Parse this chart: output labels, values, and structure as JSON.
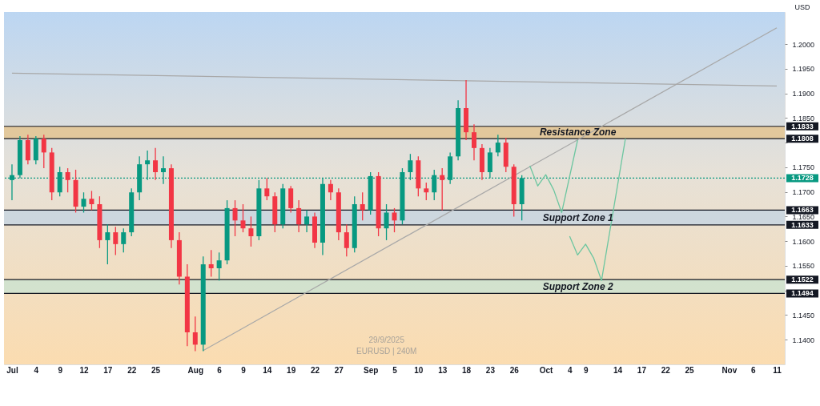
{
  "chart_data": {
    "type": "candlestick",
    "ylabel": "USD",
    "categories": [
      "Jul",
      null,
      null,
      "4",
      null,
      null,
      "9",
      null,
      null,
      "12",
      null,
      null,
      "17",
      null,
      null,
      "22",
      null,
      null,
      "25",
      null,
      null,
      null,
      null,
      "Aug",
      null,
      null,
      "6",
      null,
      null,
      "9",
      null,
      null,
      "14",
      null,
      null,
      "19",
      null,
      null,
      "22",
      null,
      null,
      "27",
      null,
      null,
      null,
      "Sep",
      null,
      null,
      "5",
      null,
      null,
      "10",
      null,
      null,
      "13",
      null,
      null,
      "18",
      null,
      null,
      "23",
      null,
      null,
      "26",
      null,
      null,
      null,
      "Oct",
      null,
      null,
      "4",
      null,
      "9",
      null,
      null,
      null,
      "14",
      null,
      null,
      "17",
      null,
      null,
      "22",
      null,
      null,
      "25",
      null,
      null,
      null,
      null,
      "Nov",
      null,
      null,
      "6",
      null,
      null,
      "11"
    ],
    "ohlc": [
      [
        1.1724,
        1.1756,
        1.1683,
        1.1734
      ],
      [
        1.1734,
        1.1813,
        1.1728,
        1.1805
      ],
      [
        1.1805,
        1.1816,
        1.1756,
        1.1764
      ],
      [
        1.1764,
        1.1813,
        1.1756,
        1.1808
      ],
      [
        1.1808,
        1.1816,
        1.1748,
        1.178
      ],
      [
        1.178,
        1.1789,
        1.1683,
        1.1699
      ],
      [
        1.1699,
        1.1751,
        1.1691,
        1.174
      ],
      [
        1.174,
        1.1748,
        1.1699,
        1.1724
      ],
      [
        1.1724,
        1.1745,
        1.1658,
        1.167
      ],
      [
        1.167,
        1.1699,
        1.1658,
        1.1686
      ],
      [
        1.1686,
        1.1702,
        1.1663,
        1.1675
      ],
      [
        1.1675,
        1.1691,
        1.1586,
        1.1602
      ],
      [
        1.1602,
        1.1634,
        1.1553,
        1.1618
      ],
      [
        1.1618,
        1.1629,
        1.1572,
        1.1594
      ],
      [
        1.1594,
        1.1626,
        1.1577,
        1.1618
      ],
      [
        1.1618,
        1.1707,
        1.161,
        1.1699
      ],
      [
        1.1699,
        1.1772,
        1.1683,
        1.1756
      ],
      [
        1.1756,
        1.1784,
        1.1724,
        1.1764
      ],
      [
        1.1764,
        1.1789,
        1.1724,
        1.174
      ],
      [
        1.174,
        1.1772,
        1.1716,
        1.1748
      ],
      [
        1.1748,
        1.1756,
        1.1586,
        1.1602
      ],
      [
        1.1602,
        1.1618,
        1.1512,
        1.1528
      ],
      [
        1.1528,
        1.1553,
        1.1387,
        1.1415
      ],
      [
        1.1415,
        1.1447,
        1.1377,
        1.139
      ],
      [
        1.139,
        1.1569,
        1.1377,
        1.1553
      ],
      [
        1.1553,
        1.1582,
        1.1528,
        1.1545
      ],
      [
        1.1545,
        1.1577,
        1.152,
        1.1561
      ],
      [
        1.1561,
        1.1683,
        1.1553,
        1.1667
      ],
      [
        1.1667,
        1.1683,
        1.161,
        1.1642
      ],
      [
        1.1642,
        1.1675,
        1.1618,
        1.1626
      ],
      [
        1.1626,
        1.165,
        1.1589,
        1.161
      ],
      [
        1.161,
        1.1724,
        1.1602,
        1.1707
      ],
      [
        1.1707,
        1.1728,
        1.1683,
        1.1691
      ],
      [
        1.1691,
        1.1699,
        1.1618,
        1.1634
      ],
      [
        1.1634,
        1.1716,
        1.1626,
        1.1707
      ],
      [
        1.1707,
        1.1712,
        1.1658,
        1.1667
      ],
      [
        1.1667,
        1.1683,
        1.1618,
        1.1634
      ],
      [
        1.1634,
        1.1663,
        1.1618,
        1.165
      ],
      [
        1.165,
        1.1658,
        1.1586,
        1.1597
      ],
      [
        1.1597,
        1.1728,
        1.1572,
        1.1716
      ],
      [
        1.1716,
        1.1724,
        1.1683,
        1.1699
      ],
      [
        1.1699,
        1.1707,
        1.1602,
        1.1618
      ],
      [
        1.1618,
        1.1634,
        1.1569,
        1.1586
      ],
      [
        1.1586,
        1.1691,
        1.1577,
        1.1675
      ],
      [
        1.1675,
        1.1699,
        1.1642,
        1.1663
      ],
      [
        1.1663,
        1.174,
        1.1654,
        1.1732
      ],
      [
        1.1732,
        1.174,
        1.161,
        1.1626
      ],
      [
        1.1626,
        1.1675,
        1.1602,
        1.1658
      ],
      [
        1.1658,
        1.1667,
        1.1618,
        1.1642
      ],
      [
        1.1642,
        1.1748,
        1.1634,
        1.174
      ],
      [
        1.174,
        1.1777,
        1.1724,
        1.1764
      ],
      [
        1.1764,
        1.1772,
        1.1691,
        1.1707
      ],
      [
        1.1707,
        1.1719,
        1.1683,
        1.1699
      ],
      [
        1.1699,
        1.1745,
        1.1683,
        1.1734
      ],
      [
        1.1734,
        1.1748,
        1.1663,
        1.1724
      ],
      [
        1.1724,
        1.178,
        1.1716,
        1.1772
      ],
      [
        1.1772,
        1.1886,
        1.1764,
        1.187
      ],
      [
        1.187,
        1.1927,
        1.1805,
        1.1821
      ],
      [
        1.1821,
        1.1837,
        1.1764,
        1.1789
      ],
      [
        1.1789,
        1.1797,
        1.1724,
        1.174
      ],
      [
        1.174,
        1.1789,
        1.1728,
        1.178
      ],
      [
        1.178,
        1.1816,
        1.1772,
        1.18
      ],
      [
        1.18,
        1.181,
        1.174,
        1.1751
      ],
      [
        1.1751,
        1.1756,
        1.165,
        1.1675
      ],
      [
        1.1675,
        1.1734,
        1.1642,
        1.1728
      ],
      null,
      null,
      null,
      null,
      null,
      null,
      null,
      null,
      null,
      null,
      null,
      null,
      null,
      null,
      null,
      null,
      null,
      null,
      null,
      null,
      null,
      null,
      null,
      null,
      null,
      null,
      null,
      null,
      null,
      null,
      null,
      null
    ],
    "series": [
      {
        "type": "line",
        "color": "#a8a8a8",
        "values": [
          null,
          null,
          null,
          null,
          null,
          null,
          null,
          null,
          null,
          null,
          null,
          null,
          null,
          null,
          null,
          null,
          null,
          null,
          null,
          null,
          null,
          null,
          null,
          null,
          1.1378,
          null,
          null,
          null,
          null,
          null,
          null,
          null,
          null,
          null,
          null,
          null,
          null,
          null,
          null,
          null,
          null,
          null,
          null,
          null,
          null,
          null,
          null,
          null,
          null,
          null,
          null,
          null,
          null,
          null,
          null,
          null,
          null,
          null,
          null,
          null,
          null,
          null,
          null,
          null,
          null,
          null,
          null,
          null,
          null,
          null,
          null,
          null,
          null,
          null,
          null,
          null,
          null,
          null,
          null,
          null,
          null,
          null,
          null,
          null,
          null,
          null,
          null,
          null,
          null,
          null,
          null,
          null,
          null,
          null,
          null,
          null,
          1.2033
        ]
      },
      {
        "type": "line",
        "color": "#a8a8a8",
        "values": [
          1.1941,
          null,
          null,
          null,
          null,
          null,
          null,
          null,
          null,
          null,
          null,
          null,
          null,
          null,
          null,
          null,
          null,
          null,
          null,
          null,
          null,
          null,
          null,
          null,
          null,
          null,
          null,
          null,
          null,
          null,
          null,
          null,
          null,
          null,
          null,
          null,
          null,
          null,
          null,
          null,
          null,
          null,
          null,
          null,
          null,
          null,
          null,
          null,
          null,
          null,
          null,
          null,
          null,
          null,
          null,
          null,
          null,
          null,
          null,
          null,
          null,
          null,
          null,
          null,
          null,
          null,
          null,
          null,
          null,
          null,
          null,
          null,
          null,
          null,
          null,
          null,
          null,
          null,
          null,
          null,
          null,
          null,
          null,
          null,
          null,
          null,
          null,
          null,
          null,
          null,
          null,
          null,
          null,
          null,
          null,
          null,
          1.1915
        ]
      },
      {
        "type": "line",
        "color": "#6cc6a0",
        "values": [
          null,
          null,
          null,
          null,
          null,
          null,
          null,
          null,
          null,
          null,
          null,
          null,
          null,
          null,
          null,
          null,
          null,
          null,
          null,
          null,
          null,
          null,
          null,
          null,
          null,
          null,
          null,
          null,
          null,
          null,
          null,
          null,
          null,
          null,
          null,
          null,
          null,
          null,
          null,
          null,
          null,
          null,
          null,
          null,
          null,
          null,
          null,
          null,
          null,
          null,
          null,
          null,
          null,
          null,
          null,
          null,
          null,
          null,
          null,
          null,
          null,
          null,
          null,
          null,
          null,
          1.1753,
          1.1712,
          1.1735,
          1.1704,
          1.1658,
          null,
          1.1805,
          null,
          null,
          null,
          null,
          null,
          null,
          null,
          null,
          null,
          null,
          null,
          null,
          null,
          null,
          null,
          null,
          null,
          null,
          null,
          null,
          null,
          null,
          null,
          null,
          null
        ]
      },
      {
        "type": "line",
        "color": "#6cc6a0",
        "values": [
          null,
          null,
          null,
          null,
          null,
          null,
          null,
          null,
          null,
          null,
          null,
          null,
          null,
          null,
          null,
          null,
          null,
          null,
          null,
          null,
          null,
          null,
          null,
          null,
          null,
          null,
          null,
          null,
          null,
          null,
          null,
          null,
          null,
          null,
          null,
          null,
          null,
          null,
          null,
          null,
          null,
          null,
          null,
          null,
          null,
          null,
          null,
          null,
          null,
          null,
          null,
          null,
          null,
          null,
          null,
          null,
          null,
          null,
          null,
          null,
          null,
          null,
          null,
          null,
          null,
          null,
          null,
          null,
          null,
          null,
          1.161,
          1.1572,
          1.1594,
          1.1566,
          1.152,
          null,
          null,
          1.1808,
          null,
          null,
          null,
          null,
          null,
          null,
          null,
          null,
          null,
          null,
          null,
          null,
          null,
          null,
          null,
          null,
          null,
          null,
          null
        ]
      }
    ],
    "ylim": [
      1.135,
      1.2065
    ],
    "yticks": [
      {
        "value": 1.14,
        "label": "1.1400"
      },
      {
        "value": 1.145,
        "label": "1.1450"
      },
      {
        "value": 1.15,
        "label": null
      },
      {
        "value": 1.155,
        "label": "1.1550"
      },
      {
        "value": 1.16,
        "label": "1.1600"
      },
      {
        "value": 1.165,
        "label": "1.1650"
      },
      {
        "value": 1.17,
        "label": "1.1700"
      },
      {
        "value": 1.175,
        "label": "1.1750"
      },
      {
        "value": 1.18,
        "label": null
      },
      {
        "value": 1.185,
        "label": "1.1850"
      },
      {
        "value": 1.19,
        "label": "1.1900"
      },
      {
        "value": 1.195,
        "label": "1.1950"
      },
      {
        "value": 1.2,
        "label": "1.2000"
      }
    ],
    "bands": [
      {
        "axis": "y",
        "from": 1.1808,
        "to": 1.1833,
        "label": "Resistance Zone",
        "color": "#e3c491"
      },
      {
        "axis": "y",
        "from": 1.1633,
        "to": 1.1663,
        "label": "Support Zone 1",
        "color": "#c8d5e0"
      },
      {
        "axis": "y",
        "from": 1.1494,
        "to": 1.1522,
        "label": "Support Zone 2",
        "color": "#cde3d0"
      }
    ],
    "ref_lines": [
      {
        "axis": "y",
        "value": 1.1833,
        "label": "1.1833",
        "color": "#131722",
        "line_style": "solid"
      },
      {
        "axis": "y",
        "value": 1.1808,
        "label": "1.1808",
        "color": "#131722",
        "line_style": "solid"
      },
      {
        "axis": "y",
        "value": 1.1728,
        "label": "1.1728",
        "color": "#089981",
        "line_style": "dotted"
      },
      {
        "axis": "y",
        "value": 1.1663,
        "label": "1.1663",
        "color": "#131722",
        "line_style": "solid"
      },
      {
        "axis": "y",
        "value": 1.1633,
        "label": "1.1633",
        "color": "#131722",
        "line_style": "solid"
      },
      {
        "axis": "y",
        "value": 1.1522,
        "label": "1.1522",
        "color": "#131722",
        "line_style": "solid"
      },
      {
        "axis": "y",
        "value": 1.1494,
        "label": "1.1494",
        "color": "#131722",
        "line_style": "solid"
      }
    ],
    "annotations": [
      "29/9/2025",
      "EURUSD | 240M"
    ]
  }
}
